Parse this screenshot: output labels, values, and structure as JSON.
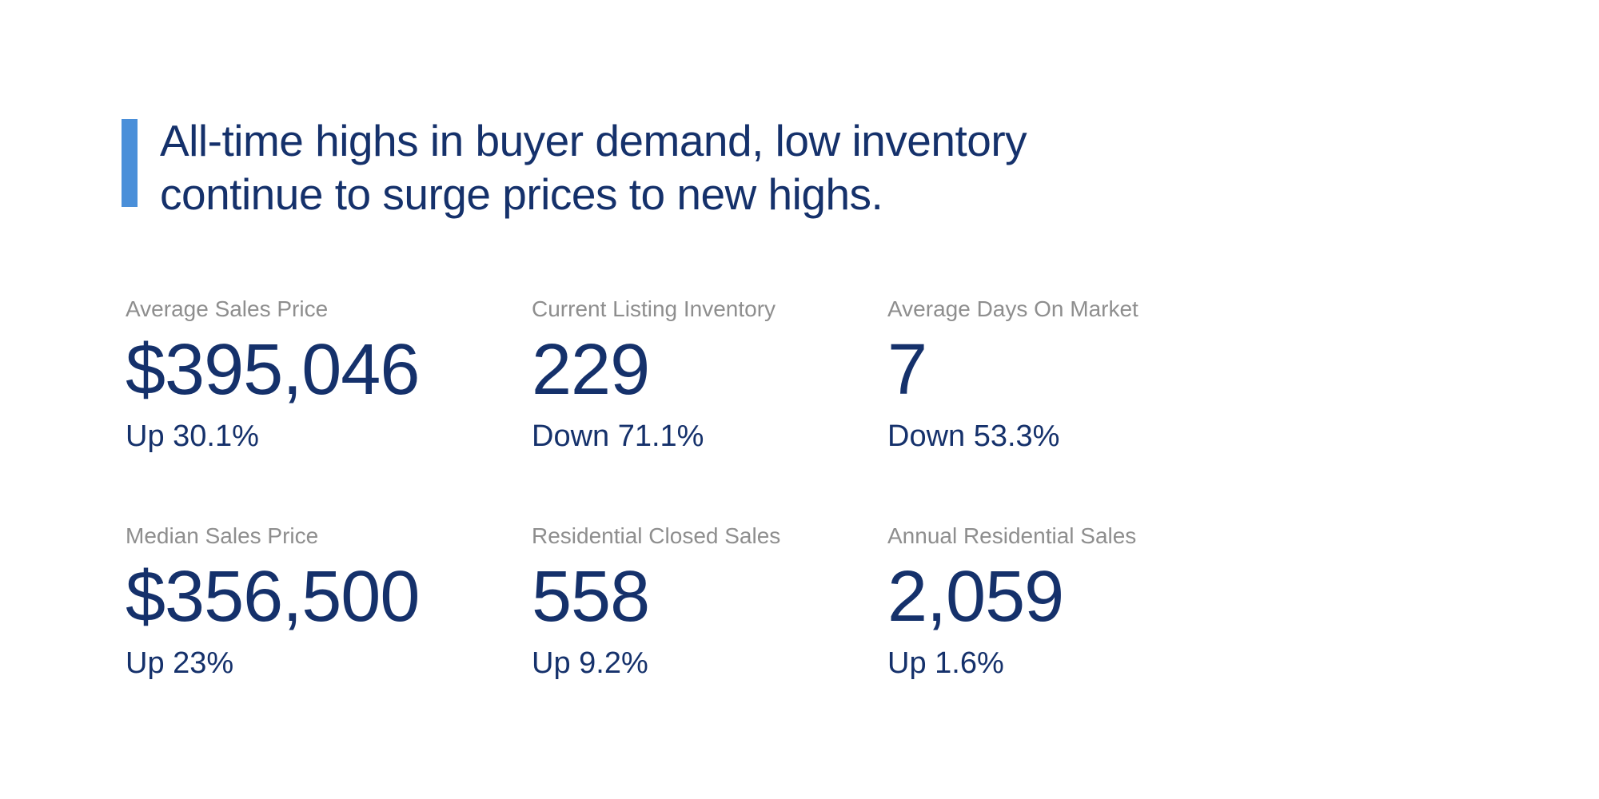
{
  "page": {
    "background_color": "#ffffff"
  },
  "headline": {
    "text": "All-time highs in buyer demand, low inventory continue to surge prices to new highs.",
    "accent_bar_color": "#4a8fd9",
    "text_color": "#15316b"
  },
  "stats": {
    "label_color": "#8e8e8e",
    "value_color": "#15316b",
    "items": [
      {
        "label": "Average Sales Price",
        "value": "$395,046",
        "change": "Up 30.1%"
      },
      {
        "label": "Current Listing Inventory",
        "value": "229",
        "change": "Down 71.1%"
      },
      {
        "label": "Average Days On Market",
        "value": "7",
        "change": "Down 53.3%"
      },
      {
        "label": "Median Sales Price",
        "value": "$356,500",
        "change": "Up 23%"
      },
      {
        "label": "Residential Closed Sales",
        "value": "558",
        "change": "Up 9.2%"
      },
      {
        "label": "Annual Residential Sales",
        "value": "2,059",
        "change": "Up 1.6%"
      }
    ]
  }
}
